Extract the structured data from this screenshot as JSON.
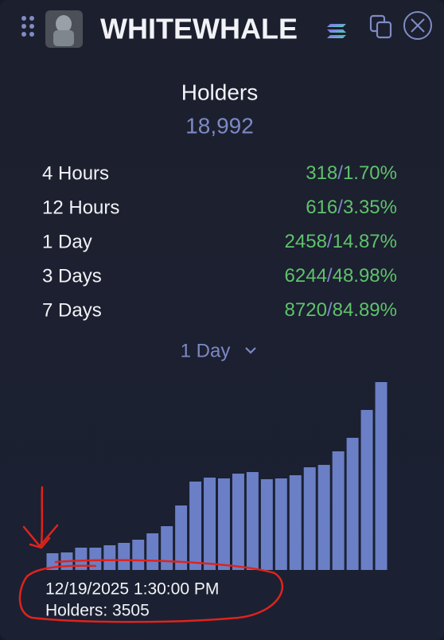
{
  "header": {
    "title": "WHITEWHALE"
  },
  "summary": {
    "label": "Holders",
    "value": "18,992"
  },
  "stats_separator": "/",
  "stats": [
    {
      "period": "4 Hours",
      "count": "318",
      "percent": "1.70%"
    },
    {
      "period": "12 Hours",
      "count": "616",
      "percent": "3.35%"
    },
    {
      "period": "1 Day",
      "count": "2458",
      "percent": "14.87%"
    },
    {
      "period": "3 Days",
      "count": "6244",
      "percent": "48.98%"
    },
    {
      "period": "7 Days",
      "count": "8720",
      "percent": "84.89%"
    }
  ],
  "range_selector": "1 Day",
  "chart_data": {
    "type": "bar",
    "color": "#6b7fc6",
    "categories": [
      null,
      null,
      null,
      null,
      null,
      null,
      null,
      null,
      null,
      null,
      null,
      null,
      null,
      null,
      null,
      null,
      null,
      null,
      null,
      null,
      null,
      null,
      null,
      null
    ],
    "values": [
      21,
      22,
      28,
      28,
      31,
      34,
      38,
      46,
      55,
      81,
      111,
      116,
      115,
      121,
      123,
      114,
      115,
      119,
      129,
      132,
      149,
      166,
      201,
      236
    ],
    "ylim": [
      0,
      240
    ]
  },
  "tooltip": {
    "date": "12/19/2025 1:30:00 PM",
    "text": "Holders: 3505"
  }
}
